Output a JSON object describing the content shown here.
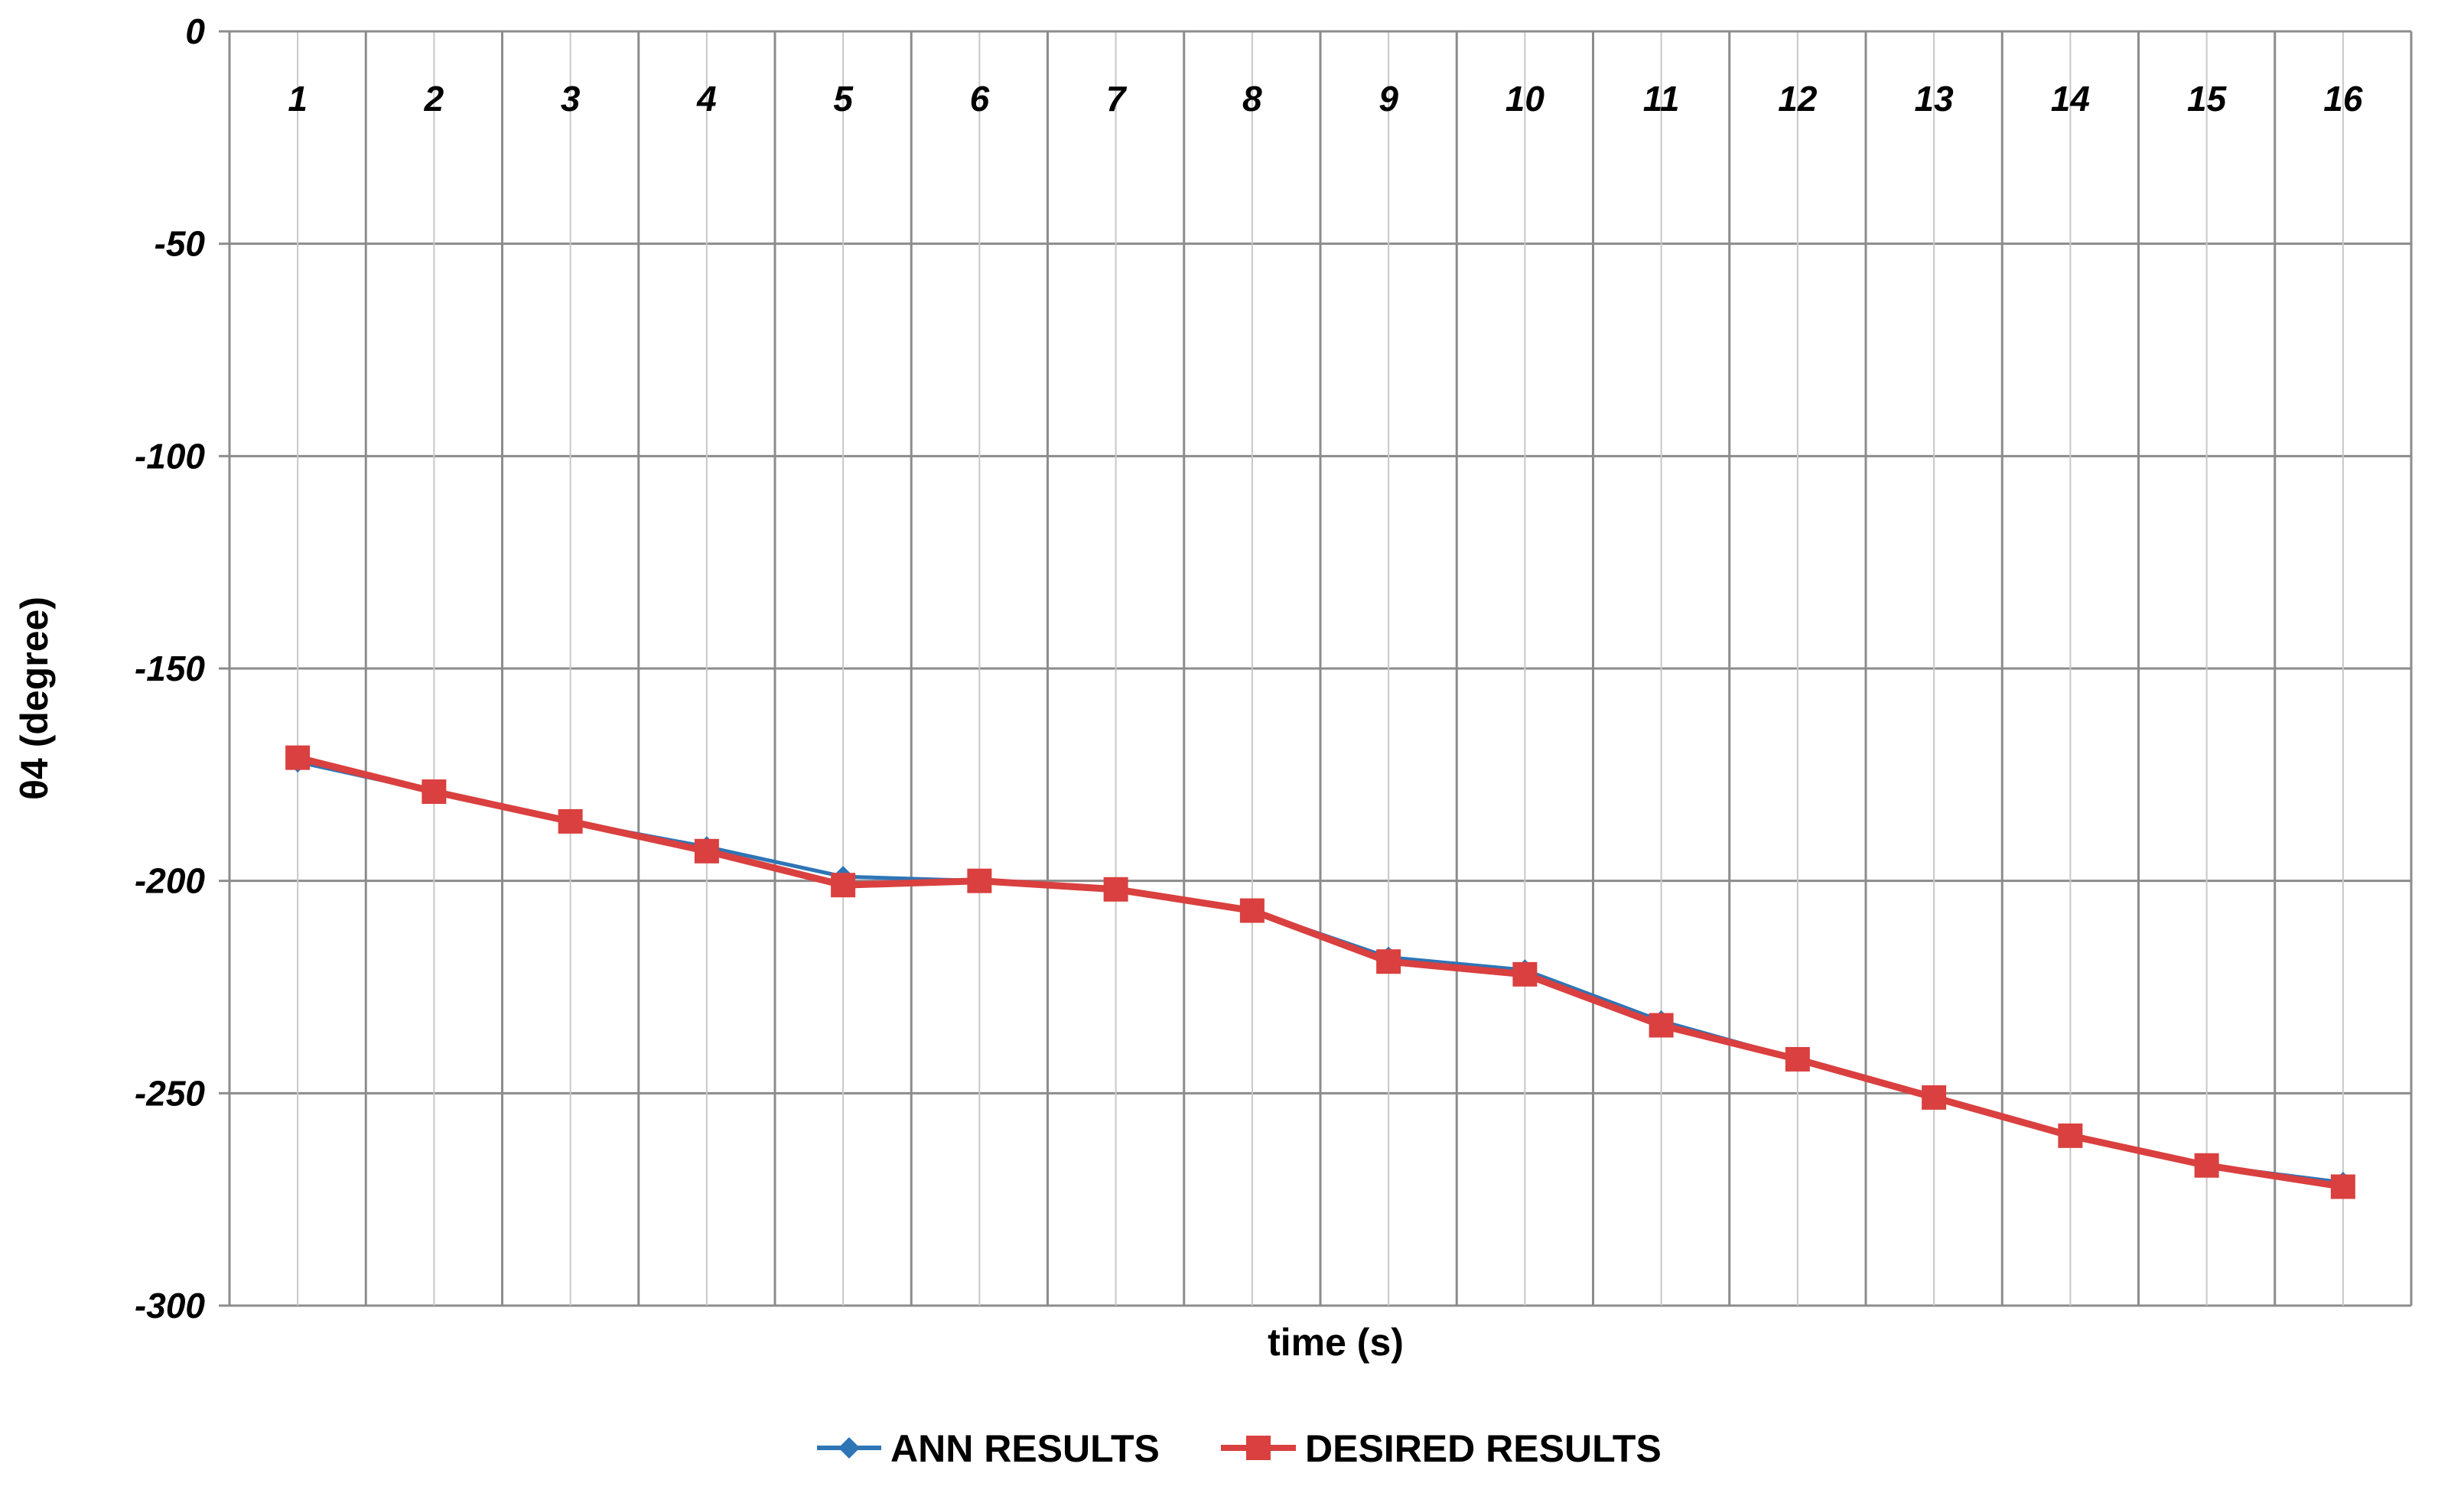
{
  "chart_data": {
    "type": "line",
    "title": "",
    "xlabel": "time (s)",
    "ylabel": "θ4 (degree)",
    "categories": [
      "1",
      "2",
      "3",
      "4",
      "5",
      "6",
      "7",
      "8",
      "9",
      "10",
      "11",
      "12",
      "13",
      "14",
      "15",
      "16"
    ],
    "ylim": [
      -300,
      0
    ],
    "yticks": [
      "0",
      "-50",
      "-100",
      "-150",
      "-200",
      "-250",
      "-300"
    ],
    "x_tick_position": "top",
    "grid": true,
    "legend_position": "bottom",
    "series": [
      {
        "name": "ANN RESULTS",
        "color": "#2E75B6",
        "marker": "diamond",
        "values": [
          -172,
          -179,
          -186,
          -192,
          -199,
          -200,
          -202,
          -207,
          -218,
          -221,
          -233,
          -242,
          -251,
          -260,
          -267,
          -271
        ]
      },
      {
        "name": "DESIRED RESULTS",
        "color": "#D9403F",
        "marker": "square",
        "values": [
          -171,
          -179,
          -186,
          -193,
          -201,
          -200,
          -202,
          -207,
          -219,
          -222,
          -234,
          -242,
          -251,
          -260,
          -267,
          -272
        ]
      }
    ]
  }
}
